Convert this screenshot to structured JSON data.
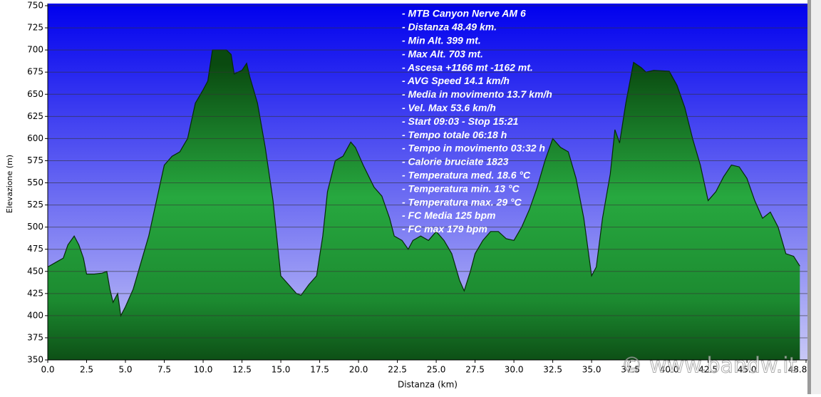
{
  "chart_data": {
    "type": "area",
    "x_label": "Distanza  (km)",
    "y_label": "Elevazione (m)",
    "xlim": [
      0,
      48.8
    ],
    "ylim": [
      350,
      750
    ],
    "yticks": [
      350,
      375,
      400,
      425,
      450,
      475,
      500,
      525,
      550,
      575,
      600,
      625,
      650,
      675,
      700,
      725,
      750
    ],
    "xticks": [
      {
        "value": 0,
        "label": "0.0"
      },
      {
        "value": 2.5,
        "label": "2.5"
      },
      {
        "value": 5,
        "label": "5.0"
      },
      {
        "value": 7.5,
        "label": "7.5"
      },
      {
        "value": 10,
        "label": "10.0"
      },
      {
        "value": 12.5,
        "label": "12.5"
      },
      {
        "value": 15,
        "label": "15.0"
      },
      {
        "value": 17.5,
        "label": "17.5"
      },
      {
        "value": 20,
        "label": "20.0"
      },
      {
        "value": 22.5,
        "label": "22.5"
      },
      {
        "value": 25,
        "label": "25.0"
      },
      {
        "value": 27.5,
        "label": "27.5"
      },
      {
        "value": 30,
        "label": "30.0"
      },
      {
        "value": 32.5,
        "label": "32.5"
      },
      {
        "value": 35,
        "label": "35.0"
      },
      {
        "value": 37.5,
        "label": "37.5"
      },
      {
        "value": 40,
        "label": "40.0"
      },
      {
        "value": 42.5,
        "label": "42.5"
      },
      {
        "value": 45,
        "label": "45.0"
      },
      {
        "value": 48.8,
        "label": "48.8"
      }
    ],
    "grid": true,
    "color": "#27a83f",
    "x": [
      0,
      0.5,
      1.0,
      1.3,
      1.7,
      2.0,
      2.3,
      2.5,
      3.0,
      3.5,
      3.8,
      4.0,
      4.2,
      4.5,
      4.7,
      5.0,
      5.5,
      6.0,
      6.5,
      7.0,
      7.5,
      8.0,
      8.5,
      9.0,
      9.5,
      10.0,
      10.3,
      10.6,
      11.0,
      11.5,
      11.8,
      12.0,
      12.5,
      12.8,
      13.0,
      13.5,
      14.0,
      14.5,
      15.0,
      15.5,
      16.0,
      16.3,
      16.8,
      17.3,
      17.7,
      18.0,
      18.5,
      19.0,
      19.5,
      19.8,
      20.3,
      21.0,
      21.5,
      22.0,
      22.3,
      22.8,
      23.2,
      23.5,
      24.0,
      24.5,
      25.0,
      25.5,
      26.0,
      26.5,
      26.8,
      27.2,
      27.5,
      28.0,
      28.5,
      29.0,
      29.5,
      30.0,
      30.5,
      31.0,
      31.5,
      32.0,
      32.5,
      33.0,
      33.5,
      34.0,
      34.5,
      35.0,
      35.3,
      35.7,
      36.2,
      36.5,
      36.8,
      37.2,
      37.7,
      38.2,
      38.5,
      39.0,
      40.0,
      40.5,
      41.0,
      41.5,
      42.0,
      42.5,
      43.0,
      43.5,
      44.0,
      44.5,
      45.0,
      45.5,
      46.0,
      46.5,
      47.0,
      47.5,
      48.0,
      48.4
    ],
    "values": [
      455,
      460,
      465,
      480,
      490,
      480,
      465,
      447,
      447,
      448,
      450,
      430,
      415,
      425,
      400,
      410,
      430,
      460,
      490,
      530,
      570,
      580,
      585,
      600,
      640,
      655,
      665,
      700,
      700,
      700,
      695,
      673,
      677,
      685,
      670,
      640,
      590,
      530,
      445,
      435,
      425,
      423,
      435,
      445,
      490,
      540,
      575,
      580,
      596,
      590,
      570,
      545,
      535,
      510,
      490,
      485,
      475,
      485,
      490,
      485,
      495,
      485,
      470,
      440,
      428,
      450,
      470,
      485,
      495,
      495,
      487,
      485,
      500,
      520,
      545,
      575,
      600,
      590,
      585,
      555,
      510,
      445,
      455,
      510,
      560,
      610,
      595,
      640,
      686,
      680,
      675,
      677,
      676,
      660,
      635,
      600,
      570,
      530,
      540,
      557,
      570,
      568,
      555,
      530,
      510,
      517,
      500,
      470,
      467,
      456
    ],
    "annotations": [
      "- MTB Canyon Nerve AM 6",
      "- Distanza 48.49 km.",
      "- Min Alt. 399 mt.",
      "- Max Alt. 703 mt.",
      "- Ascesa +1166 mt -1162 mt.",
      "- AVG Speed 14.1 km/h",
      "- Media in movimento 13.7 km/h",
      "- Vel. Max 53.6 km/h",
      "- Start 09:03 - Stop 15:21",
      "- Tempo totale 06:18 h",
      "- Tempo in movimento 03:32 h",
      "- Calorie bruciate 1823",
      "- Temperatura med. 18.6 °C",
      "- Temperatura min. 13 °C",
      "- Temperatura max. 29 °C",
      "- FC Media 125 bpm",
      "- FC max 179 bpm"
    ],
    "watermark": "© www.bandw.it"
  }
}
